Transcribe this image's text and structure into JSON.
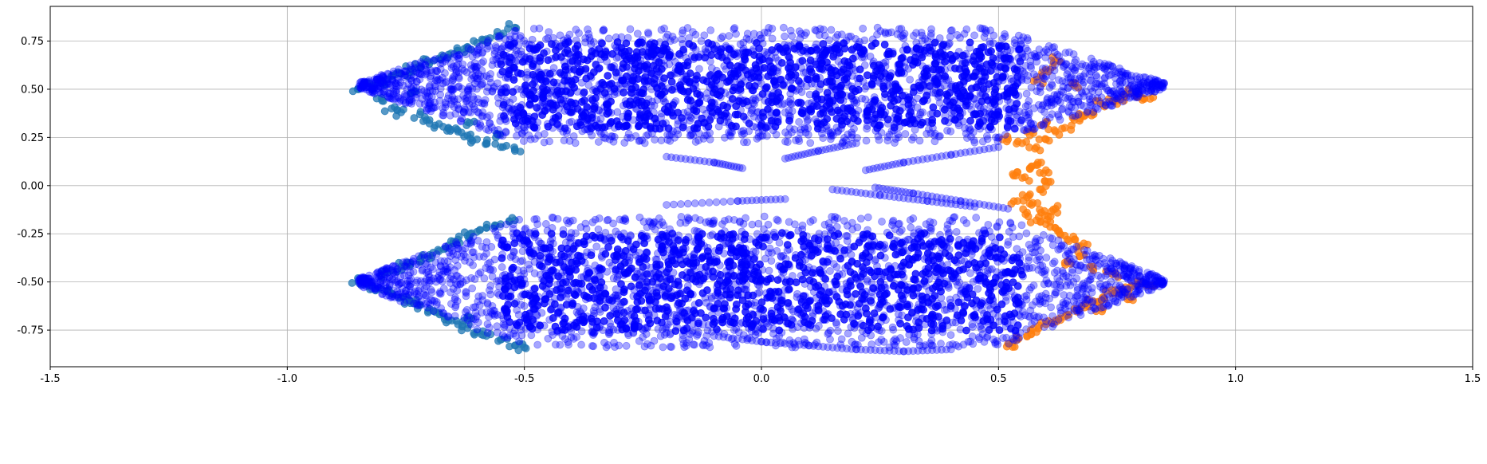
{
  "chart_data": {
    "type": "scatter",
    "title": "",
    "xlabel": "",
    "ylabel": "",
    "xlim": [
      -1.5,
      1.5
    ],
    "ylim": [
      -0.94,
      0.93
    ],
    "grid": true,
    "legend": "none",
    "x_ticks": [
      "-1.5",
      "-1.0",
      "-0.5",
      "0.0",
      "0.5",
      "1.0",
      "1.5"
    ],
    "x_tick_values": [
      -1.5,
      -1.0,
      -0.5,
      0.0,
      0.5,
      1.0,
      1.5
    ],
    "y_ticks": [
      "0.75",
      "0.50",
      "0.25",
      "0.00",
      "-0.25",
      "-0.50",
      "-0.75"
    ],
    "y_tick_values": [
      0.75,
      0.5,
      0.25,
      0.0,
      -0.25,
      -0.5,
      -0.75
    ],
    "series": [
      {
        "color": "#1f77b4",
        "opacity": 0.75,
        "points": [
          [
            -0.85,
            0.5
          ],
          [
            -0.82,
            0.52
          ],
          [
            -0.8,
            0.54
          ],
          [
            -0.78,
            0.57
          ],
          [
            -0.76,
            0.58
          ],
          [
            -0.74,
            0.6
          ],
          [
            -0.72,
            0.62
          ],
          [
            -0.7,
            0.64
          ],
          [
            -0.68,
            0.66
          ],
          [
            -0.66,
            0.68
          ],
          [
            -0.64,
            0.7
          ],
          [
            -0.62,
            0.72
          ],
          [
            -0.6,
            0.74
          ],
          [
            -0.58,
            0.76
          ],
          [
            -0.55,
            0.78
          ],
          [
            -0.52,
            0.82
          ],
          [
            -0.8,
            0.44
          ],
          [
            -0.78,
            0.4
          ],
          [
            -0.76,
            0.38
          ],
          [
            -0.72,
            0.37
          ],
          [
            -0.7,
            0.34
          ],
          [
            -0.68,
            0.32
          ],
          [
            -0.66,
            0.3
          ],
          [
            -0.64,
            0.28
          ],
          [
            -0.62,
            0.26
          ],
          [
            -0.6,
            0.24
          ],
          [
            -0.58,
            0.22
          ],
          [
            -0.55,
            0.2
          ],
          [
            -0.52,
            0.18
          ],
          [
            -0.56,
            0.25
          ],
          [
            -0.62,
            0.33
          ],
          [
            -0.74,
            0.48
          ],
          [
            -0.85,
            -0.5
          ],
          [
            -0.82,
            -0.52
          ],
          [
            -0.8,
            -0.54
          ],
          [
            -0.78,
            -0.56
          ],
          [
            -0.76,
            -0.58
          ],
          [
            -0.74,
            -0.6
          ],
          [
            -0.72,
            -0.62
          ],
          [
            -0.7,
            -0.64
          ],
          [
            -0.68,
            -0.66
          ],
          [
            -0.66,
            -0.7
          ],
          [
            -0.64,
            -0.72
          ],
          [
            -0.62,
            -0.74
          ],
          [
            -0.6,
            -0.76
          ],
          [
            -0.58,
            -0.78
          ],
          [
            -0.55,
            -0.8
          ],
          [
            -0.52,
            -0.83
          ],
          [
            -0.5,
            -0.84
          ],
          [
            -0.8,
            -0.46
          ],
          [
            -0.78,
            -0.44
          ],
          [
            -0.76,
            -0.42
          ],
          [
            -0.74,
            -0.4
          ],
          [
            -0.72,
            -0.38
          ],
          [
            -0.7,
            -0.36
          ],
          [
            -0.68,
            -0.34
          ],
          [
            -0.66,
            -0.31
          ],
          [
            -0.64,
            -0.28
          ],
          [
            -0.62,
            -0.26
          ],
          [
            -0.6,
            -0.24
          ],
          [
            -0.58,
            -0.22
          ],
          [
            -0.55,
            -0.2
          ],
          [
            -0.52,
            -0.18
          ],
          [
            -0.74,
            -0.6
          ],
          [
            -0.62,
            -0.68
          ]
        ]
      },
      {
        "color": "#ff7f0e",
        "opacity": 0.75,
        "points": [
          [
            0.52,
            0.24
          ],
          [
            0.55,
            0.22
          ],
          [
            0.58,
            0.2
          ],
          [
            0.6,
            0.24
          ],
          [
            0.62,
            0.28
          ],
          [
            0.64,
            0.3
          ],
          [
            0.66,
            0.34
          ],
          [
            0.68,
            0.36
          ],
          [
            0.7,
            0.38
          ],
          [
            0.72,
            0.42
          ],
          [
            0.74,
            0.44
          ],
          [
            0.76,
            0.46
          ],
          [
            0.78,
            0.48
          ],
          [
            0.8,
            0.46
          ],
          [
            0.82,
            0.45
          ],
          [
            0.56,
            0.28
          ],
          [
            0.6,
            0.32
          ],
          [
            0.6,
            0.6
          ],
          [
            0.62,
            0.65
          ],
          [
            0.58,
            0.55
          ],
          [
            0.66,
            0.52
          ],
          [
            0.53,
            0.06
          ],
          [
            0.55,
            0.04
          ],
          [
            0.57,
            0.1
          ],
          [
            0.59,
            0.12
          ],
          [
            0.6,
            0.08
          ],
          [
            0.61,
            0.02
          ],
          [
            0.59,
            -0.02
          ],
          [
            0.54,
            -0.08
          ],
          [
            0.56,
            -0.06
          ],
          [
            0.57,
            -0.1
          ],
          [
            0.59,
            -0.14
          ],
          [
            0.61,
            -0.16
          ],
          [
            0.58,
            -0.18
          ],
          [
            0.6,
            -0.2
          ],
          [
            0.62,
            -0.22
          ],
          [
            0.64,
            -0.26
          ],
          [
            0.66,
            -0.28
          ],
          [
            0.68,
            -0.3
          ],
          [
            0.56,
            -0.14
          ],
          [
            0.62,
            -0.12
          ],
          [
            0.52,
            -0.82
          ],
          [
            0.54,
            -0.8
          ],
          [
            0.56,
            -0.78
          ],
          [
            0.58,
            -0.76
          ],
          [
            0.6,
            -0.72
          ],
          [
            0.62,
            -0.7
          ],
          [
            0.64,
            -0.68
          ],
          [
            0.66,
            -0.64
          ],
          [
            0.68,
            -0.62
          ],
          [
            0.7,
            -0.6
          ],
          [
            0.72,
            -0.58
          ],
          [
            0.74,
            -0.56
          ],
          [
            0.76,
            -0.54
          ],
          [
            0.78,
            -0.52
          ],
          [
            0.8,
            -0.5
          ],
          [
            0.82,
            -0.52
          ],
          [
            0.78,
            -0.58
          ],
          [
            0.72,
            -0.64
          ],
          [
            0.7,
            -0.44
          ],
          [
            0.74,
            -0.46
          ],
          [
            0.64,
            -0.4
          ],
          [
            0.68,
            -0.36
          ]
        ]
      },
      {
        "color": "#0000ff",
        "opacity": 0.35,
        "region": "dense cluster",
        "upper_band": {
          "y_center": 0.52,
          "y_spread": 0.3,
          "x_edge_left": -0.85,
          "x_edge_right": 0.85
        },
        "lower_band": {
          "y_center": -0.5,
          "y_spread": 0.34,
          "x_edge_left": -0.85,
          "x_edge_right": 0.85
        },
        "trails": [
          [
            [
              -0.2,
              0.15
            ],
            [
              -0.1,
              0.12
            ],
            [
              -0.04,
              0.09
            ]
          ],
          [
            [
              0.05,
              0.14
            ],
            [
              0.12,
              0.18
            ],
            [
              0.2,
              0.22
            ]
          ],
          [
            [
              0.22,
              0.08
            ],
            [
              0.3,
              0.12
            ],
            [
              0.4,
              0.16
            ],
            [
              0.5,
              0.2
            ]
          ],
          [
            [
              0.15,
              -0.02
            ],
            [
              0.25,
              -0.05
            ],
            [
              0.35,
              -0.08
            ],
            [
              0.45,
              -0.11
            ]
          ],
          [
            [
              0.24,
              -0.01
            ],
            [
              0.32,
              -0.04
            ],
            [
              0.42,
              -0.08
            ],
            [
              0.52,
              -0.12
            ]
          ],
          [
            [
              -0.2,
              -0.1
            ],
            [
              -0.05,
              -0.08
            ],
            [
              0.05,
              -0.07
            ]
          ],
          [
            [
              -0.1,
              -0.78
            ],
            [
              0.0,
              -0.81
            ],
            [
              0.1,
              -0.83
            ],
            [
              0.2,
              -0.85
            ],
            [
              0.3,
              -0.86
            ],
            [
              0.4,
              -0.85
            ]
          ]
        ],
        "seed": 7
      }
    ]
  }
}
